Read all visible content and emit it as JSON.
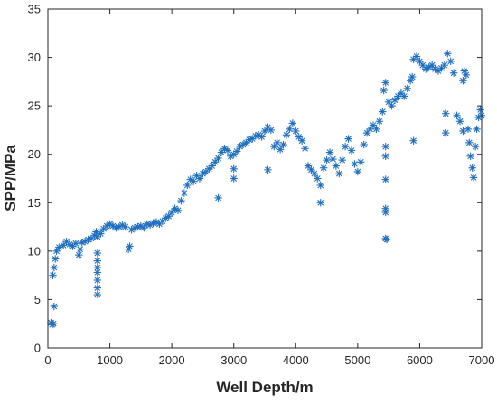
{
  "chart_data": {
    "type": "scatter",
    "title": "",
    "xlabel": "Well Depth/m",
    "ylabel": "SPP/MPa",
    "xlim": [
      0,
      7000
    ],
    "ylim": [
      0,
      35
    ],
    "xticks": [
      0,
      1000,
      2000,
      3000,
      4000,
      5000,
      6000,
      7000
    ],
    "yticks": [
      0,
      5,
      10,
      15,
      20,
      25,
      30,
      35
    ],
    "marker": "asterisk",
    "grid": false,
    "legend": "none",
    "colors": {
      "series": "#1f6fbf",
      "axis": "#262626",
      "background": "#ffffff"
    },
    "series": [
      {
        "points": [
          [
            50,
            2.6
          ],
          [
            70,
            2.4
          ],
          [
            90,
            2.5
          ],
          [
            100,
            4.3
          ],
          [
            80,
            7.5
          ],
          [
            100,
            8.3
          ],
          [
            120,
            9.2
          ],
          [
            140,
            10.0
          ],
          [
            180,
            10.4
          ],
          [
            250,
            10.6
          ],
          [
            300,
            11.0
          ],
          [
            350,
            10.7
          ],
          [
            400,
            10.5
          ],
          [
            450,
            10.8
          ],
          [
            500,
            9.6
          ],
          [
            520,
            10.2
          ],
          [
            550,
            10.9
          ],
          [
            600,
            11.0
          ],
          [
            650,
            11.2
          ],
          [
            700,
            11.3
          ],
          [
            750,
            11.6
          ],
          [
            780,
            12.0
          ],
          [
            800,
            11.5
          ],
          [
            800,
            5.5
          ],
          [
            800,
            6.2
          ],
          [
            800,
            7.0
          ],
          [
            800,
            7.8
          ],
          [
            800,
            8.3
          ],
          [
            800,
            9.0
          ],
          [
            800,
            9.8
          ],
          [
            850,
            11.8
          ],
          [
            900,
            12.3
          ],
          [
            950,
            12.6
          ],
          [
            1000,
            12.8
          ],
          [
            1050,
            12.6
          ],
          [
            1100,
            12.4
          ],
          [
            1150,
            12.5
          ],
          [
            1200,
            12.7
          ],
          [
            1250,
            12.5
          ],
          [
            1300,
            10.2
          ],
          [
            1320,
            10.5
          ],
          [
            1350,
            12.2
          ],
          [
            1400,
            12.4
          ],
          [
            1450,
            12.5
          ],
          [
            1500,
            12.6
          ],
          [
            1550,
            12.4
          ],
          [
            1600,
            12.8
          ],
          [
            1650,
            12.7
          ],
          [
            1700,
            12.9
          ],
          [
            1750,
            13.0
          ],
          [
            1800,
            12.8
          ],
          [
            1850,
            13.1
          ],
          [
            1900,
            13.4
          ],
          [
            1950,
            13.6
          ],
          [
            2000,
            14.0
          ],
          [
            2050,
            14.4
          ],
          [
            2100,
            14.2
          ],
          [
            2150,
            15.2
          ],
          [
            2200,
            16.0
          ],
          [
            2250,
            16.8
          ],
          [
            2300,
            17.4
          ],
          [
            2350,
            17.2
          ],
          [
            2400,
            17.8
          ],
          [
            2450,
            17.5
          ],
          [
            2500,
            18.0
          ],
          [
            2550,
            18.2
          ],
          [
            2600,
            18.5
          ],
          [
            2650,
            18.8
          ],
          [
            2700,
            19.2
          ],
          [
            2750,
            19.6
          ],
          [
            2750,
            15.5
          ],
          [
            2800,
            20.2
          ],
          [
            2850,
            20.6
          ],
          [
            2900,
            20.4
          ],
          [
            2950,
            19.8
          ],
          [
            3000,
            17.5
          ],
          [
            3000,
            18.5
          ],
          [
            3000,
            20.0
          ],
          [
            3050,
            20.3
          ],
          [
            3100,
            20.8
          ],
          [
            3150,
            21.0
          ],
          [
            3200,
            21.2
          ],
          [
            3250,
            21.5
          ],
          [
            3300,
            21.6
          ],
          [
            3350,
            21.9
          ],
          [
            3400,
            22.0
          ],
          [
            3450,
            21.8
          ],
          [
            3500,
            22.4
          ],
          [
            3550,
            22.8
          ],
          [
            3600,
            22.5
          ],
          [
            3550,
            18.4
          ],
          [
            3650,
            20.8
          ],
          [
            3700,
            21.2
          ],
          [
            3750,
            20.5
          ],
          [
            3800,
            21.0
          ],
          [
            3850,
            22.0
          ],
          [
            3900,
            22.6
          ],
          [
            3950,
            23.2
          ],
          [
            4000,
            22.4
          ],
          [
            4050,
            21.8
          ],
          [
            4100,
            21.4
          ],
          [
            4150,
            20.6
          ],
          [
            4200,
            18.8
          ],
          [
            4250,
            18.4
          ],
          [
            4300,
            18.0
          ],
          [
            4350,
            17.5
          ],
          [
            4400,
            16.8
          ],
          [
            4400,
            15.0
          ],
          [
            4450,
            18.6
          ],
          [
            4500,
            19.4
          ],
          [
            4550,
            20.2
          ],
          [
            4600,
            19.5
          ],
          [
            4650,
            18.8
          ],
          [
            4700,
            18.0
          ],
          [
            4750,
            19.4
          ],
          [
            4800,
            20.8
          ],
          [
            4850,
            21.6
          ],
          [
            4900,
            20.4
          ],
          [
            4950,
            19.0
          ],
          [
            5000,
            18.2
          ],
          [
            5050,
            19.2
          ],
          [
            5100,
            21.0
          ],
          [
            5150,
            22.2
          ],
          [
            5200,
            22.6
          ],
          [
            5250,
            23.0
          ],
          [
            5300,
            22.6
          ],
          [
            5350,
            23.4
          ],
          [
            5400,
            24.4
          ],
          [
            5420,
            26.6
          ],
          [
            5450,
            27.4
          ],
          [
            5450,
            20.8
          ],
          [
            5450,
            19.8
          ],
          [
            5450,
            17.4
          ],
          [
            5450,
            14.4
          ],
          [
            5450,
            14.0
          ],
          [
            5450,
            11.3
          ],
          [
            5470,
            11.2
          ],
          [
            5500,
            25.4
          ],
          [
            5550,
            25.0
          ],
          [
            5600,
            25.6
          ],
          [
            5650,
            26.0
          ],
          [
            5700,
            26.3
          ],
          [
            5750,
            26.0
          ],
          [
            5800,
            26.8
          ],
          [
            5850,
            27.6
          ],
          [
            5880,
            28.0
          ],
          [
            5900,
            21.4
          ],
          [
            5900,
            29.8
          ],
          [
            5950,
            30.1
          ],
          [
            6000,
            29.6
          ],
          [
            6050,
            29.2
          ],
          [
            6100,
            28.8
          ],
          [
            6150,
            29.0
          ],
          [
            6200,
            29.2
          ],
          [
            6250,
            28.8
          ],
          [
            6300,
            28.6
          ],
          [
            6350,
            28.9
          ],
          [
            6400,
            29.2
          ],
          [
            6420,
            24.2
          ],
          [
            6420,
            22.2
          ],
          [
            6450,
            30.4
          ],
          [
            6500,
            29.6
          ],
          [
            6550,
            28.4
          ],
          [
            6600,
            24.0
          ],
          [
            6650,
            23.4
          ],
          [
            6700,
            22.4
          ],
          [
            6700,
            27.6
          ],
          [
            6720,
            28.6
          ],
          [
            6750,
            28.2
          ],
          [
            6780,
            22.6
          ],
          [
            6800,
            21.2
          ],
          [
            6820,
            19.8
          ],
          [
            6850,
            18.6
          ],
          [
            6870,
            17.6
          ],
          [
            6900,
            20.8
          ],
          [
            6920,
            22.6
          ],
          [
            6950,
            23.8
          ],
          [
            6980,
            24.6
          ],
          [
            7000,
            24.0
          ]
        ]
      }
    ]
  }
}
